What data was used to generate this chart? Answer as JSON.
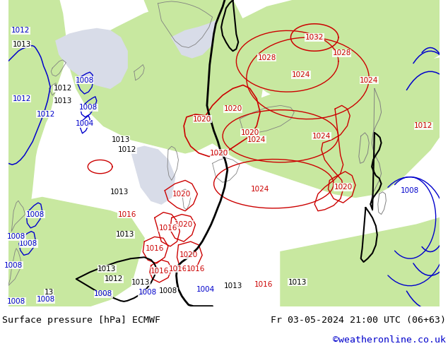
{
  "title_left": "Surface pressure [hPa] ECMWF",
  "title_right": "Fr 03-05-2024 21:00 UTC (06+63)",
  "copyright": "©weatheronline.co.uk",
  "bg_color": "#ffffff",
  "land_green": "#c8e8a0",
  "sea_gray": "#d8dce8",
  "contour_red": "#cc0000",
  "contour_blue": "#0000cc",
  "contour_black": "#000000",
  "coast_color": "#808080",
  "text_color": "#000000",
  "copyright_color": "#0000cc",
  "figwidth": 6.34,
  "figheight": 4.9,
  "dpi": 100
}
